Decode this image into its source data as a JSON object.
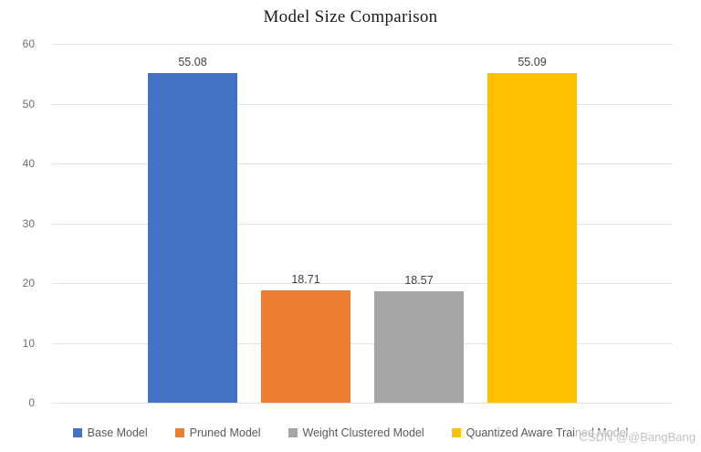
{
  "title": "Model Size Comparison",
  "watermark": "CSDN @@BangBang",
  "colors": {
    "base_model": "#4472C4",
    "pruned_model": "#ED7D31",
    "weight_clustered_model": "#A5A5A5",
    "quantized_aware_trained_model": "#FFC000",
    "gridline": "#e2e2e2",
    "axis_text": "#6e6e6e",
    "data_label_text": "#404040",
    "legend_text": "#595959"
  },
  "chart_data": {
    "type": "bar",
    "title": "Model Size Comparison",
    "categories": [
      "Base Model",
      "Pruned Model",
      "Weight Clustered Model",
      "Quantized Aware Trained Model"
    ],
    "values": [
      55.08,
      18.71,
      18.57,
      55.09
    ],
    "value_labels": [
      "55.08",
      "18.71",
      "18.57",
      "55.09"
    ],
    "bar_colors": [
      "#4472C4",
      "#ED7D31",
      "#A5A5A5",
      "#FFC000"
    ],
    "xlabel": "",
    "ylabel": "",
    "ylim": [
      0,
      60
    ],
    "ytick_step": 10,
    "ytick_labels": [
      "0",
      "10",
      "20",
      "30",
      "40",
      "50",
      "60"
    ],
    "grid": true,
    "legend_position": "bottom",
    "legend": [
      "Base Model",
      "Pruned Model",
      "Weight Clustered Model",
      "Quantized Aware Trained Model"
    ]
  }
}
